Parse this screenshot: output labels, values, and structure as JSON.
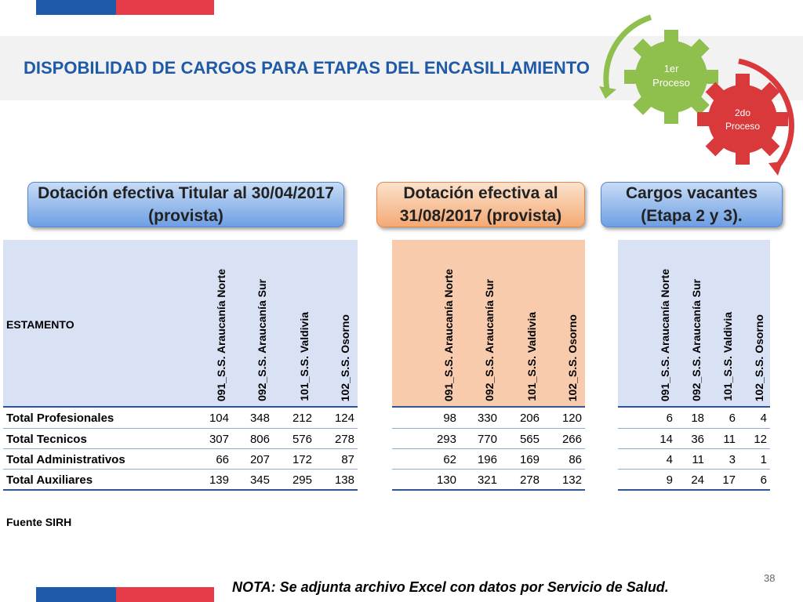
{
  "slide": {
    "title": "DISPOBILIDAD DE CARGOS PARA ETAPAS DEL ENCASILLAMIENTO",
    "page_number": "38",
    "source": "Fuente SIRH",
    "note": "NOTA: Se adjunta archivo Excel con datos por Servicio de Salud."
  },
  "diagram": {
    "gear1": {
      "line1": "1er",
      "line2": "Proceso",
      "color": "#8fbf4d"
    },
    "gear2": {
      "line1": "2do",
      "line2": "Proceso",
      "color": "#d9393a"
    }
  },
  "boxes": {
    "titular": "Dotación efectiva Titular al 30/04/2017 (provista)",
    "efectiva": "Dotación efectiva al 31/08/2017 (provista)",
    "vacantes": "Cargos vacantes (Etapa 2 y 3)."
  },
  "table": {
    "estamento_label": "ESTAMENTO",
    "columns": [
      "091_S.S. Araucanía Norte",
      "092_S.S. Araucanía Sur",
      "101_S.S. Valdivia",
      "102_S.S. Osorno"
    ],
    "row_labels": [
      "Total Profesionales",
      "Total Tecnicos",
      "Total Administrativos",
      "Total Auxiliares"
    ],
    "titular": [
      [
        "104",
        "348",
        "212",
        "124"
      ],
      [
        "307",
        "806",
        "576",
        "278"
      ],
      [
        "66",
        "207",
        "172",
        "87"
      ],
      [
        "139",
        "345",
        "295",
        "138"
      ]
    ],
    "efectiva": [
      [
        "98",
        "330",
        "206",
        "120"
      ],
      [
        "293",
        "770",
        "565",
        "266"
      ],
      [
        "62",
        "196",
        "169",
        "86"
      ],
      [
        "130",
        "321",
        "278",
        "132"
      ]
    ],
    "vacantes": [
      [
        "6",
        "18",
        "6",
        "4"
      ],
      [
        "14",
        "36",
        "11",
        "12"
      ],
      [
        "4",
        "11",
        "3",
        "1"
      ],
      [
        "9",
        "24",
        "17",
        "6"
      ]
    ]
  }
}
